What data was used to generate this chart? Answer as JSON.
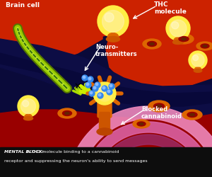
{
  "label_brain_cell": "Brain cell",
  "label_thc": "THC\nmolecule",
  "label_neuro": "Neuro-\ntransmitters",
  "label_blocked": "Blocked\ncannabinoid",
  "caption_bold": "MENTAL BLOCK: ",
  "caption_rest": "A THC molecule binding to a cannabinoid\nreceptor and suppressing the neuron's ability to send messages",
  "col_dark_navy": "#0a0a3a",
  "col_red_bright": "#cc2200",
  "col_red_dark": "#990000",
  "col_red_mid": "#bb2200",
  "col_pink": "#ee88bb",
  "col_pink2": "#dd66aa",
  "col_mauve": "#cc77bb",
  "col_green_axon": "#99cc00",
  "col_green_dark": "#557700",
  "col_yellow": "#ffee44",
  "col_yellow2": "#ffdd00",
  "col_orange": "#dd6600",
  "col_orange2": "#cc5500",
  "col_orange3": "#bb4400",
  "col_blue_dot": "#3388ee",
  "col_blue_dot2": "#88bbff",
  "col_caption_bg": "#0d0d0d",
  "col_white": "#ffffff",
  "col_black": "#111111"
}
